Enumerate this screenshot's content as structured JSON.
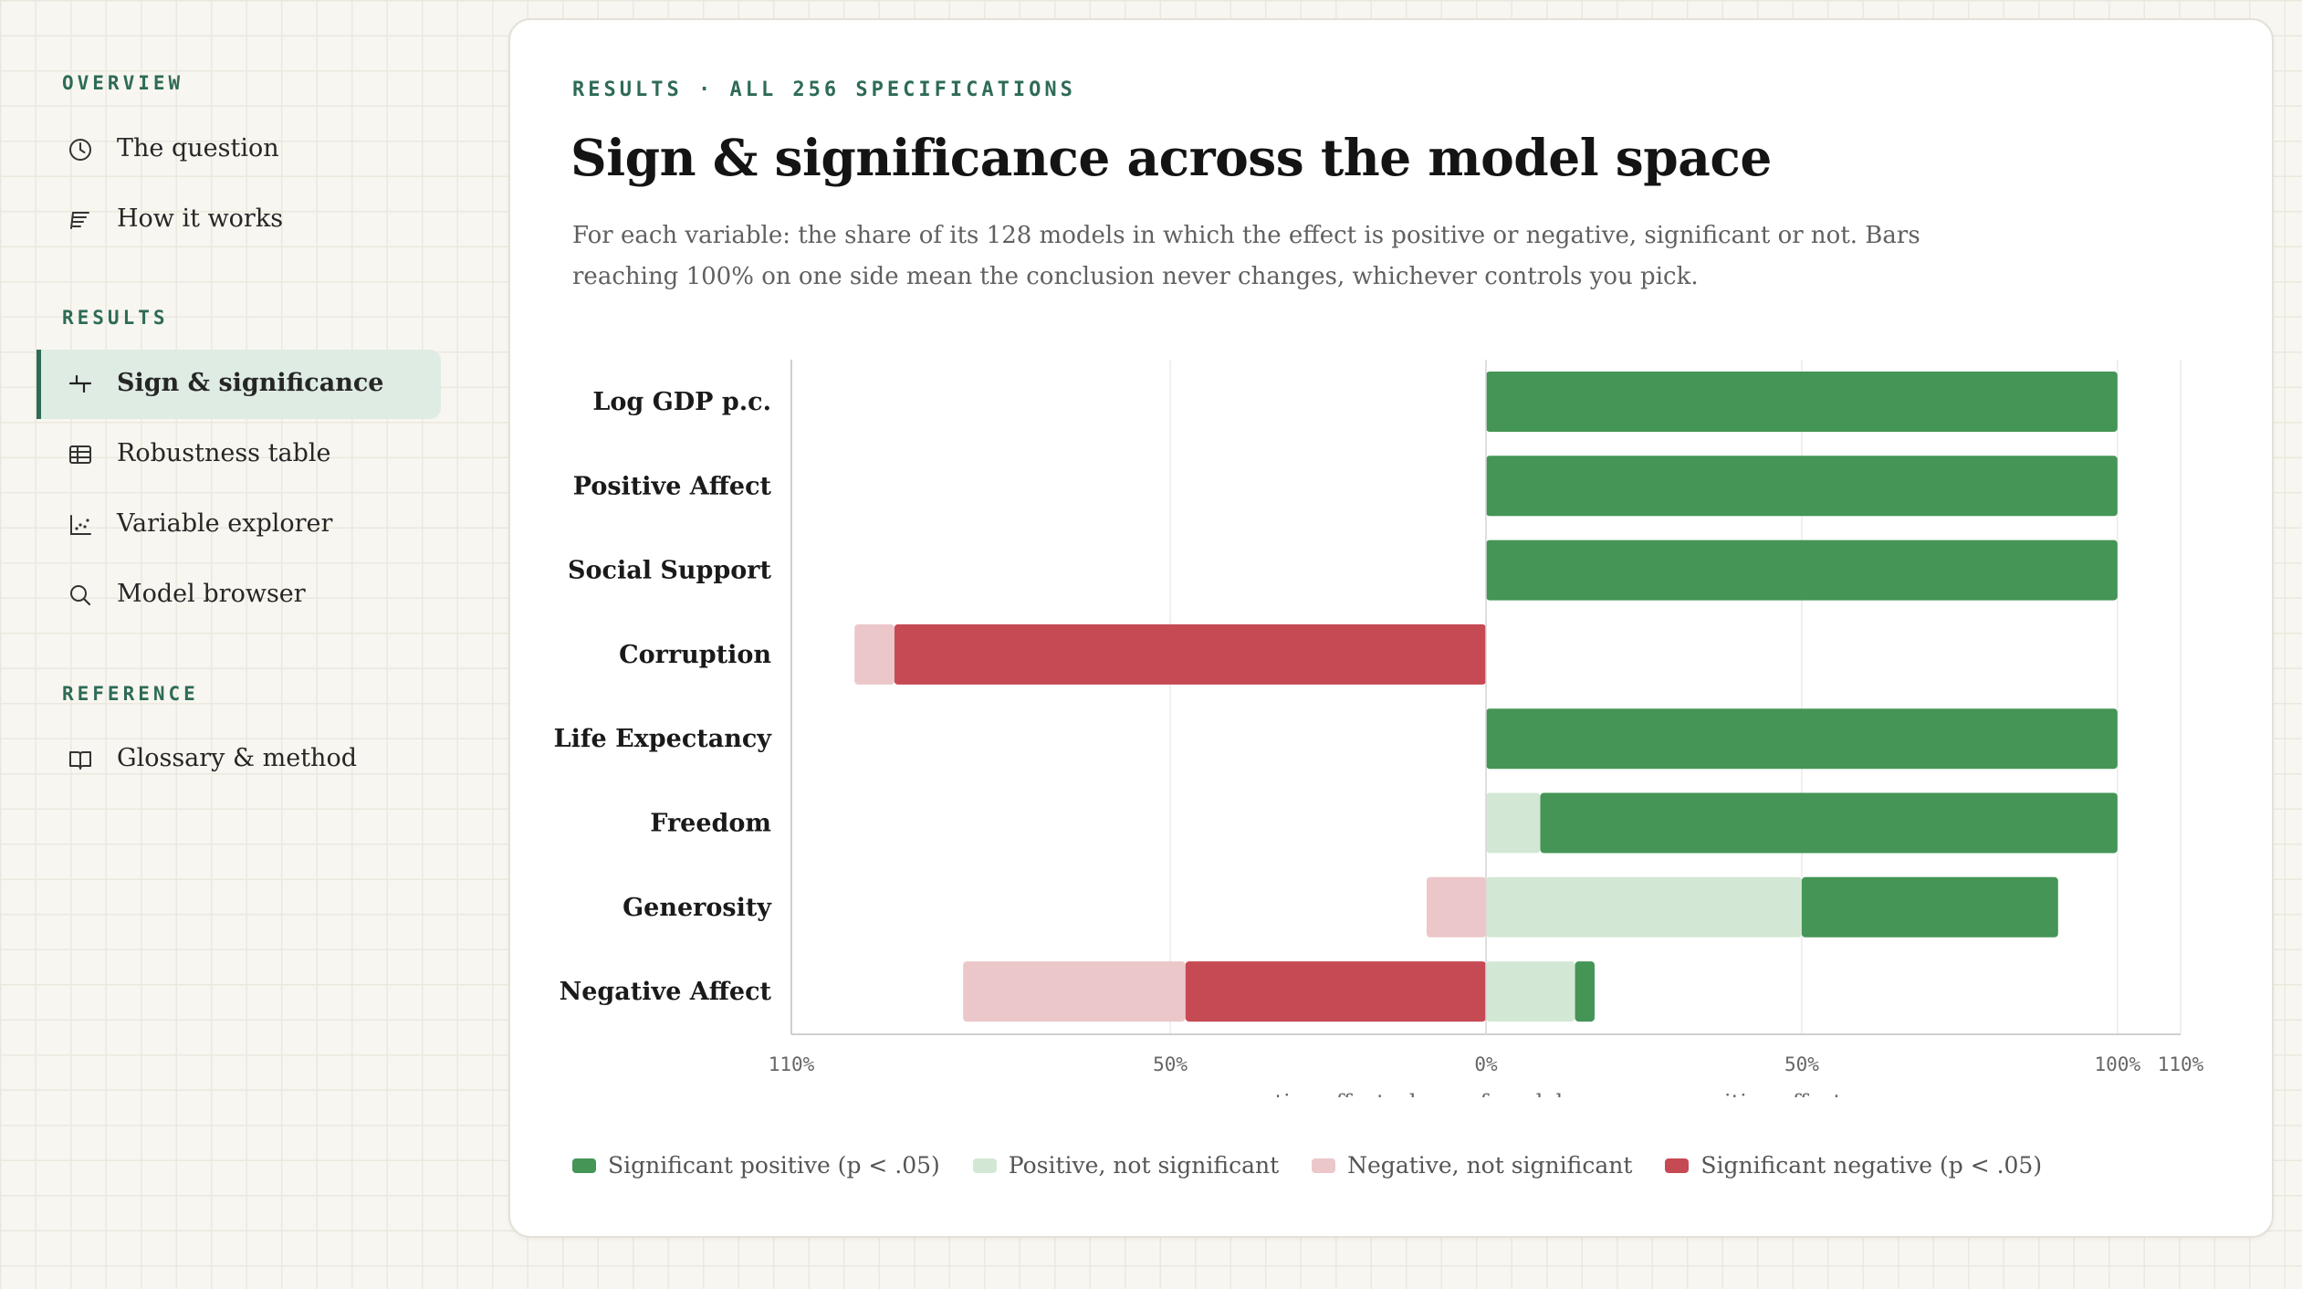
{
  "sidebar": {
    "sections": [
      {
        "label": "OVERVIEW"
      },
      {
        "label": "RESULTS"
      },
      {
        "label": "REFERENCE"
      }
    ],
    "items": [
      {
        "label": "The question",
        "icon": "clock-icon"
      },
      {
        "label": "How it works",
        "icon": "text-lines-icon"
      },
      {
        "label": "Sign & significance",
        "icon": "axis-cross-icon",
        "active": true
      },
      {
        "label": "Robustness table",
        "icon": "table-icon"
      },
      {
        "label": "Variable explorer",
        "icon": "scatter-icon"
      },
      {
        "label": "Model browser",
        "icon": "search-icon"
      },
      {
        "label": "Glossary & method",
        "icon": "book-icon"
      }
    ]
  },
  "main": {
    "kicker": "RESULTS · ALL 256 SPECIFICATIONS",
    "title": "Sign & significance across the model space",
    "subtitle": "For each variable: the share of its 128 models in which the effect is positive or negative, significant or not. Bars reaching 100% on one side mean the conclusion never changes, whichever controls you pick."
  },
  "chart_data": {
    "type": "bar",
    "orientation": "horizontal",
    "stacked": "diverging",
    "categories": [
      "Log GDP p.c.",
      "Positive Affect",
      "Social Support",
      "Corruption",
      "Life Expectancy",
      "Freedom",
      "Generosity",
      "Negative Affect"
    ],
    "series": [
      {
        "name": "Significant positive (p < .05)",
        "color": "#459556",
        "values": [
          100,
          100,
          100,
          0,
          100,
          91.4,
          40.6,
          3.1
        ]
      },
      {
        "name": "Positive, not significant",
        "color": "#d3e8d4",
        "values": [
          0,
          0,
          0,
          0,
          0,
          8.6,
          50,
          14.1
        ]
      },
      {
        "name": "Negative, not significant",
        "color": "#ebc7ca",
        "values": [
          0,
          0,
          0,
          6.3,
          0,
          0,
          9.4,
          35.2
        ]
      },
      {
        "name": "Significant negative (p < .05)",
        "color": "#c64a53",
        "values": [
          0,
          0,
          0,
          93.7,
          0,
          0,
          0,
          47.6
        ]
      }
    ],
    "xlim": [
      -110,
      110
    ],
    "ticks": [
      {
        "value": -110,
        "label": "110%"
      },
      {
        "value": -50,
        "label": "50%"
      },
      {
        "value": 0,
        "label": "0%"
      },
      {
        "value": 50,
        "label": "50%"
      },
      {
        "value": 100,
        "label": "100%"
      },
      {
        "value": 110,
        "label": "110%"
      }
    ],
    "xlabel_left": "← negative effect",
    "xlabel_center": "share of models",
    "xlabel_right": "positive effect →",
    "grid": true,
    "legend_position": "bottom-left"
  }
}
